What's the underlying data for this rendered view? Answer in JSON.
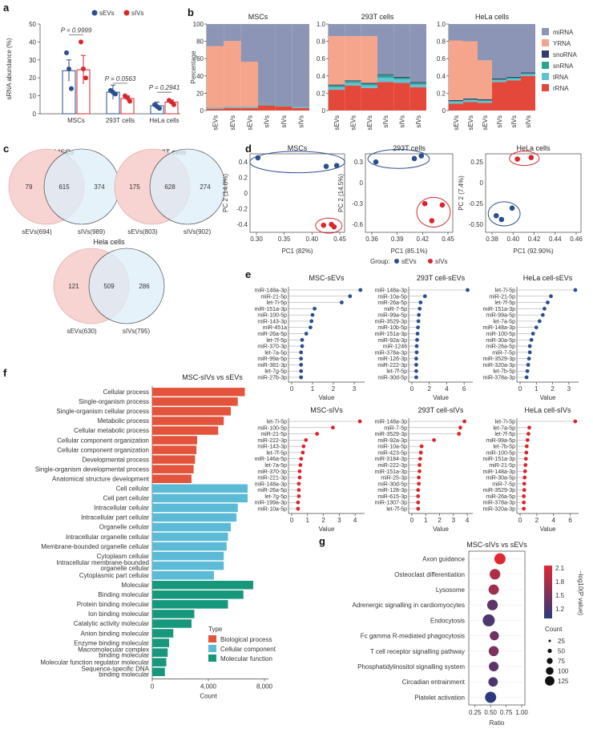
{
  "panel_labels": [
    "a",
    "b",
    "c",
    "d",
    "e",
    "f",
    "g"
  ],
  "colors": {
    "sEVs": "#2b4f8e",
    "sIVs": "#d9262c",
    "miRNA": "#8d95b6",
    "YRNA": "#f4a58b",
    "snoRNA": "#323c6e",
    "snRNA": "#2ca58f",
    "tRNA": "#60c2d3",
    "rRNA": "#e4483a",
    "bio": "#e4533c",
    "cell": "#5bbbd6",
    "mol": "#17977b",
    "venn_left": "#f7d3d2",
    "venn_right": "#dceef8"
  },
  "panel_a": {
    "legend": [
      "sEVs",
      "sIVs"
    ],
    "ylabel": "sRNA abundance (%)",
    "yticks": [
      "0",
      "10",
      "20",
      "30",
      "40",
      "50"
    ],
    "pvalues": [
      "P = 0.9999",
      "P = 0.0563",
      "P = 0.2941"
    ],
    "categories": [
      "MSCs",
      "293T cells",
      "HeLa cells"
    ]
  },
  "panel_b": {
    "titles": [
      "MSCs",
      "293T cells",
      "HeLa cells"
    ],
    "ylabel": "Percentage",
    "yticks1": [
      "0",
      "20",
      "40",
      "60",
      "80",
      "100"
    ],
    "yticks2": [
      "0",
      "0.2",
      "0.4",
      "0.6",
      "0.8",
      "1.0"
    ],
    "xlabels": [
      "sEVs",
      "sEVs",
      "sEVs",
      "sIVs",
      "sIVs",
      "sIVs"
    ],
    "legend": [
      "miRNA",
      "YRNA",
      "snoRNA",
      "snRNA",
      "tRNA",
      "rRNA"
    ]
  },
  "panel_c": {
    "venns": [
      {
        "title": "MSCs",
        "left": "79",
        "mid": "615",
        "right": "374",
        "lab_left": "sEVs(694)",
        "lab_right": "sIVs(989)"
      },
      {
        "title": "293T cells",
        "left": "175",
        "mid": "628",
        "right": "274",
        "lab_left": "sEVs(803)",
        "lab_right": "sIVs(902)"
      },
      {
        "title": "Hela cells",
        "left": "121",
        "mid": "509",
        "right": "286",
        "lab_left": "sEVs(630)",
        "lab_right": "sIVs(795)"
      }
    ]
  },
  "panel_d": {
    "titles": [
      "MSCs",
      "293T cells",
      "HeLa cells"
    ],
    "ylabels": [
      "PC 2 (14.8%)",
      "PC 2 (14.5%)",
      "PC 2 (7.4%)"
    ],
    "xlabels": [
      "PC1 (82%)",
      "PC1 (85.1%)",
      "PC1 (92.90%)"
    ],
    "xticks": [
      [
        "0.30",
        "0.35",
        "0.40",
        "0.45"
      ],
      [
        "0.36",
        "0.39",
        "0.42",
        "0.45"
      ],
      [
        "0.38",
        "0.40",
        "0.42",
        "0.44",
        "0.46"
      ]
    ],
    "yticks": [
      [
        "0.4",
        "0.2",
        "0",
        "-0.2",
        "-0.4"
      ],
      [
        "0.3",
        "0",
        "-0.3",
        "-0.6"
      ],
      [
        "0.25",
        "0",
        "-0.25",
        "-0.50"
      ]
    ],
    "group_label": "Group:",
    "groups": [
      "sEVs",
      "sIVs"
    ]
  },
  "panel_e": {
    "xlabel": "Value",
    "plots": [
      {
        "title": "MSC-sEVs",
        "color": "sEVs",
        "xticks": [
          "0",
          "1",
          "2",
          "3"
        ],
        "xmax": 3.5,
        "labels": [
          "miR-148a-3p",
          "miR-21-5p",
          "let-7i-5p",
          "miR-151a-3p",
          "miR-100-5p",
          "miR-143-3p",
          "miR-451a",
          "miR-26a-5p",
          "let-7f-5p",
          "miR-370-3p",
          "let-7a-5p",
          "miR-99a-5p",
          "miR-381-3p",
          "let-7g-5p",
          "miR-27b-3p"
        ],
        "values": [
          3.3,
          2.8,
          2.4,
          1.1,
          1.0,
          0.95,
          0.9,
          0.7,
          0.5,
          0.5,
          0.45,
          0.45,
          0.45,
          0.45,
          0.45
        ]
      },
      {
        "title": "293T cell-sEVs",
        "color": "sEVs",
        "xticks": [
          "0",
          "2",
          "4",
          "6"
        ],
        "xmax": 7,
        "labels": [
          "miR-148a-3p",
          "miR-10a-5p",
          "miR-26a-5p",
          "miR-7-5p",
          "miR-99a-5p",
          "miR-3529-3p",
          "miR-10b-5p",
          "miR-151a-3p",
          "miR-92a-3p",
          "miR-1246",
          "miR-378a-3p",
          "miR-126-3p",
          "miR-222-3p",
          "let-7f-5p",
          "miR-30d-5p"
        ],
        "values": [
          6.4,
          1.5,
          1.0,
          0.9,
          0.8,
          0.75,
          0.7,
          0.65,
          0.6,
          0.55,
          0.55,
          0.5,
          0.5,
          0.5,
          0.5
        ]
      },
      {
        "title": "HeLa cell-sEVs",
        "color": "sEVs",
        "xticks": [
          "0",
          "1",
          "2",
          "3"
        ],
        "xmax": 3.6,
        "labels": [
          "let-7i-5p",
          "miR-21-5p",
          "let-7f-5p",
          "miR-151a-3p",
          "miR-99a-5p",
          "let-7a-5p",
          "miR-148a-3p",
          "miR-100-5p",
          "miR-30a-5p",
          "miR-26a-5p",
          "miR-7-5p",
          "miR-3529-3p",
          "miR-320a-3p",
          "let-7b-5p",
          "miR-378a-3p"
        ],
        "values": [
          3.4,
          1.9,
          1.7,
          1.5,
          1.4,
          1.2,
          1.0,
          0.8,
          0.7,
          0.6,
          0.6,
          0.55,
          0.5,
          0.45,
          0.4
        ]
      },
      {
        "title": "MSC-sIVs",
        "color": "sIVs",
        "xticks": [
          "0",
          "1",
          "2",
          "3",
          "4"
        ],
        "xmax": 4.6,
        "labels": [
          "let-7i-5p",
          "miR-100-5p",
          "miR-21-5p",
          "miR-222-3p",
          "miR-143-3p",
          "let-7f-5p",
          "miR-146a-5p",
          "let-7a-5p",
          "miR-370-3p",
          "miR-221-3p",
          "miR-148a-3p",
          "miR-26a-5p",
          "let-7g-5p",
          "miR-199a-3p",
          "miR-10a-5p"
        ],
        "values": [
          4.3,
          2.6,
          1.6,
          0.9,
          0.75,
          0.7,
          0.6,
          0.55,
          0.5,
          0.5,
          0.45,
          0.45,
          0.45,
          0.4,
          0.4
        ]
      },
      {
        "title": "293T cell-sIVs",
        "color": "sIVs",
        "xticks": [
          "0",
          "1",
          "2",
          "3",
          "4"
        ],
        "xmax": 4.4,
        "labels": [
          "miR-148a-3p",
          "miR-7-5p",
          "miR-3529-3p",
          "miR-92a-3p",
          "miR-10a-5p",
          "miR-423-5p",
          "miR-3184-3p",
          "miR-222-3p",
          "miR-151a-3p",
          "miR-25-3p",
          "miR-30d-5p",
          "miR-128-3p",
          "miR-615-3p",
          "miR-1307-3p",
          "let-7f-5p"
        ],
        "values": [
          3.8,
          3.5,
          3.4,
          1.6,
          0.7,
          0.65,
          0.6,
          0.55,
          0.55,
          0.5,
          0.5,
          0.45,
          0.45,
          0.45,
          0.45
        ]
      },
      {
        "title": "HeLa cell-sIVs",
        "color": "sIVs",
        "xticks": [
          "0",
          "2",
          "4",
          "6"
        ],
        "xmax": 7,
        "labels": [
          "let-7i-5p",
          "let-7a-5p",
          "let-7f-5p",
          "miR-99a-5p",
          "let-7b-5p",
          "miR-100-5p",
          "miR-151a-3p",
          "miR-21-5p",
          "miR-148a-3p",
          "miR-30a-5p",
          "miR-7-5p",
          "miR-3529-3p",
          "miR-26a-5p",
          "miR-378a-3p",
          "miR-320a-3p"
        ],
        "values": [
          6.6,
          1.1,
          1.0,
          0.9,
          0.8,
          0.75,
          0.7,
          0.65,
          0.6,
          0.55,
          0.5,
          0.5,
          0.45,
          0.45,
          0.45
        ]
      }
    ]
  },
  "panel_f": {
    "title": "MSC-sIVs vs sEVs",
    "xlabel": "Count",
    "xticks": [
      "0",
      "4,000",
      "8,000"
    ],
    "legend_title": "Type",
    "legend": [
      "Biological process",
      "Cellular component",
      "Molecular function"
    ],
    "terms": [
      {
        "label": "Cellular process",
        "value": 6600,
        "type": "bio"
      },
      {
        "label": "Single-organism process",
        "value": 6100,
        "type": "bio"
      },
      {
        "label": "Single-organism cellular process",
        "value": 5600,
        "type": "bio"
      },
      {
        "label": "Metabolic process",
        "value": 5100,
        "type": "bio"
      },
      {
        "label": "Cellular metabolic process",
        "value": 4700,
        "type": "bio"
      },
      {
        "label": "Cellular component organization",
        "value": 3200,
        "type": "bio"
      },
      {
        "label": "Cellular component organization",
        "value": 3150,
        "type": "bio"
      },
      {
        "label": "Developmental process",
        "value": 3050,
        "type": "bio"
      },
      {
        "label": "Single-organism developmental process",
        "value": 2950,
        "type": "bio"
      },
      {
        "label": "Anatomical structure development",
        "value": 2800,
        "type": "bio"
      },
      {
        "label": "Cell cellular",
        "value": 6800,
        "type": "cell"
      },
      {
        "label": "Cell part cellular",
        "value": 6800,
        "type": "cell"
      },
      {
        "label": "Intracellular cellular",
        "value": 6100,
        "type": "cell"
      },
      {
        "label": "Intracellular part cellular",
        "value": 6000,
        "type": "cell"
      },
      {
        "label": "Organelle cellular",
        "value": 5600,
        "type": "cell"
      },
      {
        "label": "Intracellular organelle cellular",
        "value": 5400,
        "type": "cell"
      },
      {
        "label": "Membrane-bounded organelle cellular",
        "value": 5300,
        "type": "cell"
      },
      {
        "label": "Cytoplasm cellular",
        "value": 5100,
        "type": "cell"
      },
      {
        "label": "Intracellular membrane-bounded organelle cellular",
        "value": 5100,
        "type": "cell"
      },
      {
        "label": "Cytoplasmic part cellular",
        "value": 4400,
        "type": "cell"
      },
      {
        "label": "Molecular",
        "value": 7200,
        "type": "mol"
      },
      {
        "label": "Binding molecular",
        "value": 6500,
        "type": "mol"
      },
      {
        "label": "Protein binding molecular",
        "value": 5400,
        "type": "mol"
      },
      {
        "label": "Ion binding molecular",
        "value": 3000,
        "type": "mol"
      },
      {
        "label": "Catalytic activity molecular",
        "value": 2800,
        "type": "mol"
      },
      {
        "label": "Anion binding molecular",
        "value": 1500,
        "type": "mol"
      },
      {
        "label": "Enzyme binding molecular",
        "value": 1200,
        "type": "mol"
      },
      {
        "label": "Macromolecular complex binding molecular",
        "value": 1100,
        "type": "mol"
      },
      {
        "label": "Molecular function regulator molecular",
        "value": 1000,
        "type": "mol"
      },
      {
        "label": "Sequence-specific DNA binding molecular",
        "value": 900,
        "type": "mol"
      }
    ]
  },
  "panel_g": {
    "title": "MSC-sIVs vs sEVs",
    "xlabel": "Ratio",
    "xticks": [
      "0.25",
      "0.50",
      "0.75",
      "1.00"
    ],
    "colorbar_ticks": [
      "2.1",
      "1.8",
      "1.5",
      "1.2"
    ],
    "colorbar_label": "−log10(P value)",
    "size_title": "Count",
    "size_ticks": [
      "25",
      "50",
      "75",
      "100",
      "125"
    ],
    "pathways": [
      "Axon guidance",
      "Osteoclast differentiation",
      "Lysosome",
      "Adrenergic signalling in cardiomyocytes",
      "Endocytosis",
      "Fc gamma R-mediated phagocytosis",
      "T cell receptor signalling pathway",
      "Phosphatidylinositol signalling system",
      "Circadian entrainment",
      "Platelet activation"
    ],
    "ratio": [
      0.65,
      0.57,
      0.55,
      0.53,
      0.47,
      0.56,
      0.55,
      0.55,
      0.54,
      0.5
    ],
    "neglogp": [
      2.2,
      1.9,
      1.8,
      1.4,
      1.3,
      1.5,
      1.6,
      1.4,
      1.3,
      1.1
    ],
    "count": [
      110,
      100,
      95,
      100,
      125,
      75,
      90,
      85,
      80,
      110
    ]
  },
  "chart_data": [
    {
      "type": "bar",
      "title": "a",
      "categories": [
        "MSCs",
        "293T cells",
        "HeLa cells"
      ],
      "series": [
        {
          "name": "sEVs",
          "values": [
            24,
            12,
            4.5
          ]
        },
        {
          "name": "sIVs",
          "values": [
            24.5,
            8.5,
            6.5
          ]
        }
      ],
      "points": {
        "sEVs": [
          [
            34,
            25,
            14
          ],
          [
            13,
            12,
            11
          ],
          [
            5,
            4,
            3
          ]
        ],
        "sIVs": [
          [
            40,
            25,
            20
          ],
          [
            10,
            9,
            7
          ],
          [
            7.5,
            6.5,
            5
          ]
        ]
      },
      "ylabel": "sRNA abundance (%)",
      "ylim": [
        0,
        50
      ]
    },
    {
      "type": "bar",
      "title": "b",
      "stacked": true,
      "series_order": [
        "rRNA",
        "tRNA",
        "snRNA",
        "snoRNA",
        "YRNA",
        "miRNA"
      ],
      "stacks": [
        [
          [
            2,
            1,
            0.3,
            0.2,
            71,
            25.5
          ],
          [
            3,
            1,
            0.3,
            0.2,
            76,
            19.5
          ],
          [
            3,
            1,
            0.3,
            0.2,
            52,
            43.5
          ],
          [
            6,
            1,
            0.3,
            0.2,
            0,
            92.5
          ],
          [
            5,
            1,
            0.3,
            0.2,
            0,
            93.5
          ],
          [
            3,
            1,
            0.3,
            0.2,
            0,
            95.5
          ]
        ],
        [
          [
            0.24,
            0.03,
            0.02,
            0.01,
            0.56,
            0.14
          ],
          [
            0.29,
            0.03,
            0.02,
            0.01,
            0.51,
            0.14
          ],
          [
            0.26,
            0.03,
            0.02,
            0.01,
            0.54,
            0.14
          ],
          [
            0.33,
            0.05,
            0.03,
            0.01,
            0,
            0.58
          ],
          [
            0.32,
            0.04,
            0.02,
            0.01,
            0,
            0.61
          ],
          [
            0.27,
            0.03,
            0.02,
            0.01,
            0,
            0.67
          ]
        ],
        [
          [
            0.08,
            0.02,
            0.01,
            0.01,
            0.69,
            0.19
          ],
          [
            0.1,
            0.02,
            0.01,
            0.01,
            0.66,
            0.2
          ],
          [
            0.09,
            0.02,
            0.01,
            0.01,
            0.45,
            0.42
          ],
          [
            0.33,
            0.02,
            0.01,
            0.01,
            0,
            0.63
          ],
          [
            0.35,
            0.02,
            0.01,
            0.01,
            0,
            0.61
          ],
          [
            0.4,
            0.02,
            0.01,
            0.01,
            0,
            0.56
          ]
        ]
      ]
    },
    {
      "type": "scatter",
      "title": "d",
      "plots": [
        {
          "xlim": [
            0.27,
            0.45
          ],
          "ylim": [
            -0.45,
            0.55
          ],
          "sEVs": [
            [
              0.285,
              0.5
            ],
            [
              0.415,
              0.39
            ],
            [
              0.435,
              0.4
            ]
          ],
          "sIVs": [
            [
              0.41,
              -0.36
            ],
            [
              0.425,
              -0.35
            ],
            [
              0.43,
              -0.38
            ]
          ]
        },
        {
          "xlim": [
            0.33,
            0.455
          ],
          "ylim": [
            -0.7,
            0.45
          ],
          "sEVs": [
            [
              0.345,
              0.33
            ],
            [
              0.4,
              0.38
            ],
            [
              0.41,
              0.42
            ]
          ],
          "sIVs": [
            [
              0.415,
              -0.28
            ],
            [
              0.44,
              -0.3
            ],
            [
              0.425,
              -0.53
            ]
          ]
        },
        {
          "xlim": [
            0.375,
            0.465
          ],
          "ylim": [
            -0.62,
            0.42
          ],
          "sEVs": [
            [
              0.385,
              -0.4
            ],
            [
              0.39,
              -0.45
            ],
            [
              0.4,
              -0.3
            ]
          ],
          "sIVs": [
            [
              0.405,
              0.35
            ],
            [
              0.418,
              0.37
            ]
          ]
        }
      ]
    }
  ]
}
